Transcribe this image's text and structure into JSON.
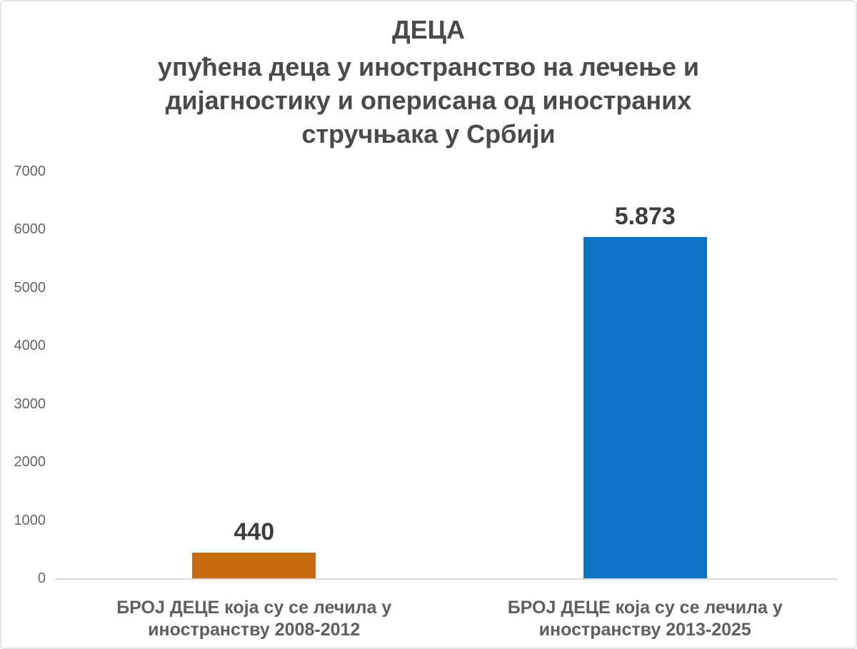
{
  "chart_data": {
    "type": "bar",
    "title": "ДЕЦА",
    "subtitle": "упућена деца у иностранство на лечење и дијагностику и оперисана од иностраних стручњака у Србији",
    "title_lines": [
      "ДЕЦА",
      "упућена деца у иностранство на лечење и",
      "дијагностику и оперисана од иностраних",
      "стручњака у Србији"
    ],
    "categories": [
      "БРОЈ ДЕЦЕ која су се лечила у иностранству 2008-2012",
      "БРОЈ ДЕЦЕ која су се лечила у иностранству 2013-2025"
    ],
    "category_lines": [
      [
        "БРОЈ ДЕЦЕ која су се лечила у",
        "иностранству 2008-2012"
      ],
      [
        "БРОЈ ДЕЦЕ која су се лечила у",
        "иностранству 2013-2025"
      ]
    ],
    "values": [
      440,
      5873
    ],
    "value_labels": [
      "440",
      "5.873"
    ],
    "bar_colors": [
      "#C86A10",
      "#0B74C4"
    ],
    "y_ticks": [
      0,
      1000,
      2000,
      3000,
      4000,
      5000,
      6000,
      7000
    ],
    "ylim": [
      0,
      7000
    ],
    "xlabel": "",
    "ylabel": "",
    "grid": false,
    "legend_position": "none",
    "colors": {
      "title_text": "#4A4A4A",
      "value_label_text": "#3D3D3D",
      "tick_label_text": "#666666",
      "category_label_text": "#5F5F5F",
      "axis_line": "#D8D8D8",
      "background": "#FFFFFF",
      "page_border": "#E3E3E3"
    }
  }
}
